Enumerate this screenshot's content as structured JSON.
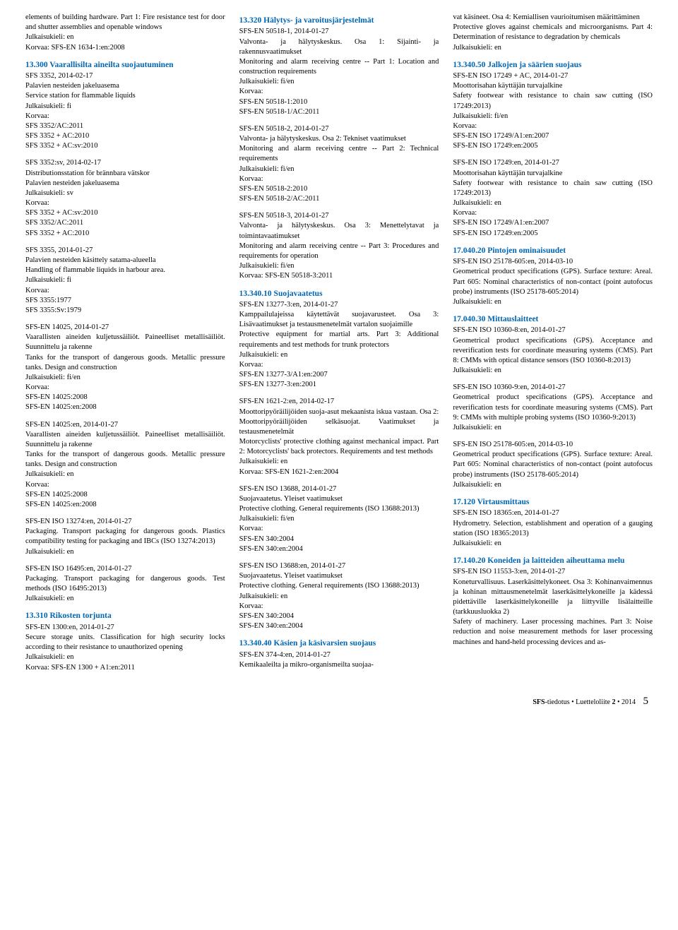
{
  "columns": [
    {
      "entries": [
        {
          "type": "entry",
          "text": "elements of building hardware. Part 1: Fire resistance test for door and shutter assemblies and openable windows",
          "lang": "Julkaisukieli: en",
          "korvaa": "Korvaa: SFS-EN 1634-1:en:2008"
        },
        {
          "type": "heading",
          "title": "13.300 Vaarallisilta aineilta suojautuminen"
        },
        {
          "type": "entry",
          "title": "SFS 3352, 2014-02-17",
          "text": "Palavien nesteiden jakeluasema\nService station for flammable liquids",
          "lang": "Julkaisukieli: fi",
          "korvaa": "Korvaa:",
          "replaces": [
            "SFS 3352/AC:2011",
            "SFS 3352 + AC:2010",
            "SFS 3352 + AC:sv:2010"
          ]
        },
        {
          "type": "entry",
          "title": "SFS 3352:sv, 2014-02-17",
          "text": "Distributionsstation för brännbara vätskor\nPalavien nesteiden jakeluasema",
          "lang": "Julkaisukieli: sv",
          "korvaa": "Korvaa:",
          "replaces": [
            "SFS 3352 + AC:sv:2010",
            "SFS 3352/AC:2011",
            "SFS 3352 + AC:2010"
          ]
        },
        {
          "type": "entry",
          "title": "SFS 3355, 2014-01-27",
          "text": "Palavien nesteiden käsittely satama-alueella\nHandling of flammable liquids in harbour area.",
          "lang": "Julkaisukieli: fi",
          "korvaa": "Korvaa:",
          "replaces": [
            "SFS 3355:1977",
            "SFS 3355:Sv:1979"
          ]
        },
        {
          "type": "entry",
          "title": "SFS-EN 14025, 2014-01-27",
          "text": "Vaarallisten aineiden kuljetussäiliöt. Paineelliset metallisäiliöt. Suunnittelu ja rakenne\nTanks for the transport of dangerous goods. Metallic pressure tanks. Design and construction",
          "lang": "Julkaisukieli: fi/en",
          "korvaa": "Korvaa:",
          "replaces": [
            "SFS-EN 14025:2008",
            "SFS-EN 14025:en:2008"
          ]
        },
        {
          "type": "entry",
          "title": "SFS-EN 14025:en, 2014-01-27",
          "text": "Vaarallisten aineiden kuljetussäiliöt. Paineelliset metallisäiliöt. Suunnittelu ja rakenne\nTanks for the transport of dangerous goods. Metallic pressure tanks. Design and construction",
          "lang": "Julkaisukieli: en",
          "korvaa": "Korvaa:",
          "replaces": [
            "SFS-EN 14025:2008",
            "SFS-EN 14025:en:2008"
          ]
        },
        {
          "type": "entry",
          "title": "SFS-EN ISO 13274:en, 2014-01-27",
          "text": "Packaging. Transport packaging for dangerous goods. Plastics compatibility testing for packaging and IBCs (ISO 13274:2013)",
          "lang": "Julkaisukieli: en"
        },
        {
          "type": "entry",
          "title": "SFS-EN ISO 16495:en, 2014-01-27",
          "text": "Packaging. Transport packaging for dangerous goods. Test methods (ISO 16495:2013)",
          "lang": "Julkaisukieli: en"
        },
        {
          "type": "heading",
          "title": "13.310 Rikosten torjunta"
        },
        {
          "type": "entry",
          "title": "SFS-EN 1300:en, 2014-01-27",
          "text": "Secure storage units. Classification for high security locks according to their resistance to unauthorized opening",
          "lang": "Julkaisukieli: en",
          "korvaa": "Korvaa: SFS-EN 1300 + A1:en:2011"
        }
      ]
    },
    {
      "entries": [
        {
          "type": "heading",
          "title": "13.320 Hälytys- ja varoitus­järjestelmät"
        },
        {
          "type": "entry",
          "title": "SFS-EN 50518-1, 2014-01-27",
          "text": "Valvonta- ja hälytyskeskus. Osa 1: Sijainti- ja rakennusvaatimukset\nMonitoring and alarm receiving centre -- Part 1: Location and construction requirements",
          "lang": "Julkaisukieli: fi/en",
          "korvaa": "Korvaa:",
          "replaces": [
            "SFS-EN 50518-1:2010",
            "SFS-EN 50518-1/AC:2011"
          ]
        },
        {
          "type": "entry",
          "title": "SFS-EN 50518-2, 2014-01-27",
          "text": "Valvonta- ja hälytyskeskus. Osa 2: Tekniset vaatimukset\nMonitoring and alarm receiving centre -- Part 2: Technical requirements",
          "lang": "Julkaisukieli: fi/en",
          "korvaa": "Korvaa:",
          "replaces": [
            "SFS-EN 50518-2:2010",
            "SFS-EN 50518-2/AC:2011"
          ]
        },
        {
          "type": "entry",
          "title": "SFS-EN 50518-3, 2014-01-27",
          "text": "Valvonta- ja hälytyskeskus. Osa 3: Menettelytavat ja toimintavaatimukset\nMonitoring and alarm receiving centre -- Part 3: Procedures and requirements for operation",
          "lang": "Julkaisukieli: fi/en",
          "korvaa": "Korvaa: SFS-EN 50518-3:2011"
        },
        {
          "type": "heading",
          "title": "13.340.10 Suojavaatetus"
        },
        {
          "type": "entry",
          "title": "SFS-EN 13277-3:en, 2014-01-27",
          "text": "Kamppailulajeissa käytettävät suojavarusteet. Osa 3: Lisävaatimukset ja testausmenetelmät vartalon suojaimille\nProtective equipment for martial arts. Part 3: Additional requirements and test methods for trunk protectors",
          "lang": "Julkaisukieli: en",
          "korvaa": "Korvaa:",
          "replaces": [
            "SFS-EN 13277-3/A1:en:2007",
            "SFS-EN 13277-3:en:2001"
          ]
        },
        {
          "type": "entry",
          "title": "SFS-EN 1621-2:en, 2014-02-17",
          "text": "Moottoripyöräilijöiden suoja-asut mekaanista iskua vastaan. Osa 2: Moottoripyöräilijöiden selkäsuojat. Vaatimukset ja testausmenetelmät\nMotorcyclists' protective clothing against mechanical impact. Part 2: Motorcyclists' back protectors. Requirements and test methods",
          "lang": "Julkaisukieli: en",
          "korvaa": "Korvaa: SFS-EN 1621-2:en:2004"
        },
        {
          "type": "entry",
          "title": "SFS-EN ISO 13688, 2014-01-27",
          "text": "Suojavaatetus. Yleiset vaatimukset\nProtective clothing. General requirements (ISO 13688:2013)",
          "lang": "Julkaisukieli: fi/en",
          "korvaa": "Korvaa:",
          "replaces": [
            "SFS-EN 340:2004",
            "SFS-EN 340:en:2004"
          ]
        },
        {
          "type": "entry",
          "title": "SFS-EN ISO 13688:en, 2014-01-27",
          "text": "Suojavaatetus. Yleiset vaatimukset\nProtective clothing. General requirements (ISO 13688:2013)",
          "lang": "Julkaisukieli: en",
          "korvaa": "Korvaa:",
          "replaces": [
            "SFS-EN 340:2004",
            "SFS-EN 340:en:2004"
          ]
        },
        {
          "type": "heading",
          "title": "13.340.40 Käsien ja käsivarsien suojaus"
        },
        {
          "type": "entry",
          "title": "SFS-EN 374-4:en, 2014-01-27",
          "text": "Kemikaaleilta ja mikro-organismeilta suojaa-"
        }
      ]
    },
    {
      "entries": [
        {
          "type": "entry",
          "text": "vat käsineet. Osa 4: Kemiallisen vaurioitumisen määrittäminen\nProtective gloves against chemicals and microorganisms. Part 4: Determination of resistance to degradation by chemicals",
          "lang": "Julkaisukieli: en"
        },
        {
          "type": "heading",
          "title": "13.340.50 Jalkojen ja säärien suojaus"
        },
        {
          "type": "entry",
          "title": "SFS-EN ISO 17249 + AC, 2014-01-27",
          "text": "Moottorisahan käyttäjän turvajalkine\nSafety footwear with resistance to chain saw cutting (ISO 17249:2013)",
          "lang": "Julkaisukieli: fi/en",
          "korvaa": "Korvaa:",
          "replaces": [
            "SFS-EN ISO 17249/A1:en:2007",
            "SFS-EN ISO 17249:en:2005"
          ]
        },
        {
          "type": "entry",
          "title": "SFS-EN ISO 17249:en, 2014-01-27",
          "text": "Moottorisahan käyttäjän turvajalkine\nSafety footwear with resistance to chain saw cutting (ISO 17249:2013)",
          "lang": "Julkaisukieli: en",
          "korvaa": "Korvaa:",
          "replaces": [
            "SFS-EN ISO 17249/A1:en:2007",
            "SFS-EN ISO 17249:en:2005"
          ]
        },
        {
          "type": "heading",
          "title": "17.040.20 Pintojen ominaisuudet"
        },
        {
          "type": "entry",
          "title": "SFS-EN ISO 25178-605:en, 2014-03-10",
          "text": "Geometrical product specifications (GPS). Surface texture: Areal. Part 605: Nominal characteristics of non-contact (point autofocus probe) instruments (ISO 25178-605:2014)",
          "lang": "Julkaisukieli: en"
        },
        {
          "type": "heading",
          "title": "17.040.30 Mittauslaitteet"
        },
        {
          "type": "entry",
          "title": "SFS-EN ISO 10360-8:en, 2014-01-27",
          "text": "Geometrical product specifications (GPS). Acceptance and reverification tests for coordinate measuring systems (CMS). Part 8: CMMs with optical distance sensors (ISO 10360-8:2013)",
          "lang": "Julkaisukieli: en"
        },
        {
          "type": "entry",
          "title": "SFS-EN ISO 10360-9:en, 2014-01-27",
          "text": "Geometrical product specifications (GPS). Acceptance and reverification tests for coordinate measuring systems (CMS). Part 9: CMMs with multiple probing systems (ISO 10360-9:2013)",
          "lang": "Julkaisukieli: en"
        },
        {
          "type": "entry",
          "title": "SFS-EN ISO 25178-605:en, 2014-03-10",
          "text": "Geometrical product specifications (GPS). Surface texture: Areal. Part 605: Nominal characteristics of non-contact (point autofocus probe) instruments (ISO 25178-605:2014)",
          "lang": "Julkaisukieli: en"
        },
        {
          "type": "heading",
          "title": "17.120 Virtausmittaus"
        },
        {
          "type": "entry",
          "title": "SFS-EN ISO 18365:en, 2014-01-27",
          "text": "Hydrometry. Selection, establishment and operation of a gauging station (ISO 18365:2013)",
          "lang": "Julkaisukieli: en"
        },
        {
          "type": "heading",
          "title": "17.140.20 Koneiden ja laitteiden aiheuttama melu"
        },
        {
          "type": "entry",
          "title": "SFS-EN ISO 11553-3:en, 2014-01-27",
          "text": "Koneturvallisuus. Laserkäsittelykoneet. Osa 3: Kohinanvaimennus ja kohinan mittausmenetelmät laserkäsittelykoneille ja kädessä pidettäville laserkäsittelykoneille ja liittyville lisälaitteille (tarkkuusluokka 2)\nSafety of machinery. Laser processing machines. Part 3: Noise reduction and noise measurement methods for laser processing machines and hand-held processing devices and as-"
        }
      ]
    }
  ],
  "footer": {
    "brand": "SFS",
    "brandSuffix": "-tiedotus",
    "sep": "•",
    "issue": "Luetteloliite",
    "num": "2",
    "year": "2014",
    "page": "5"
  }
}
